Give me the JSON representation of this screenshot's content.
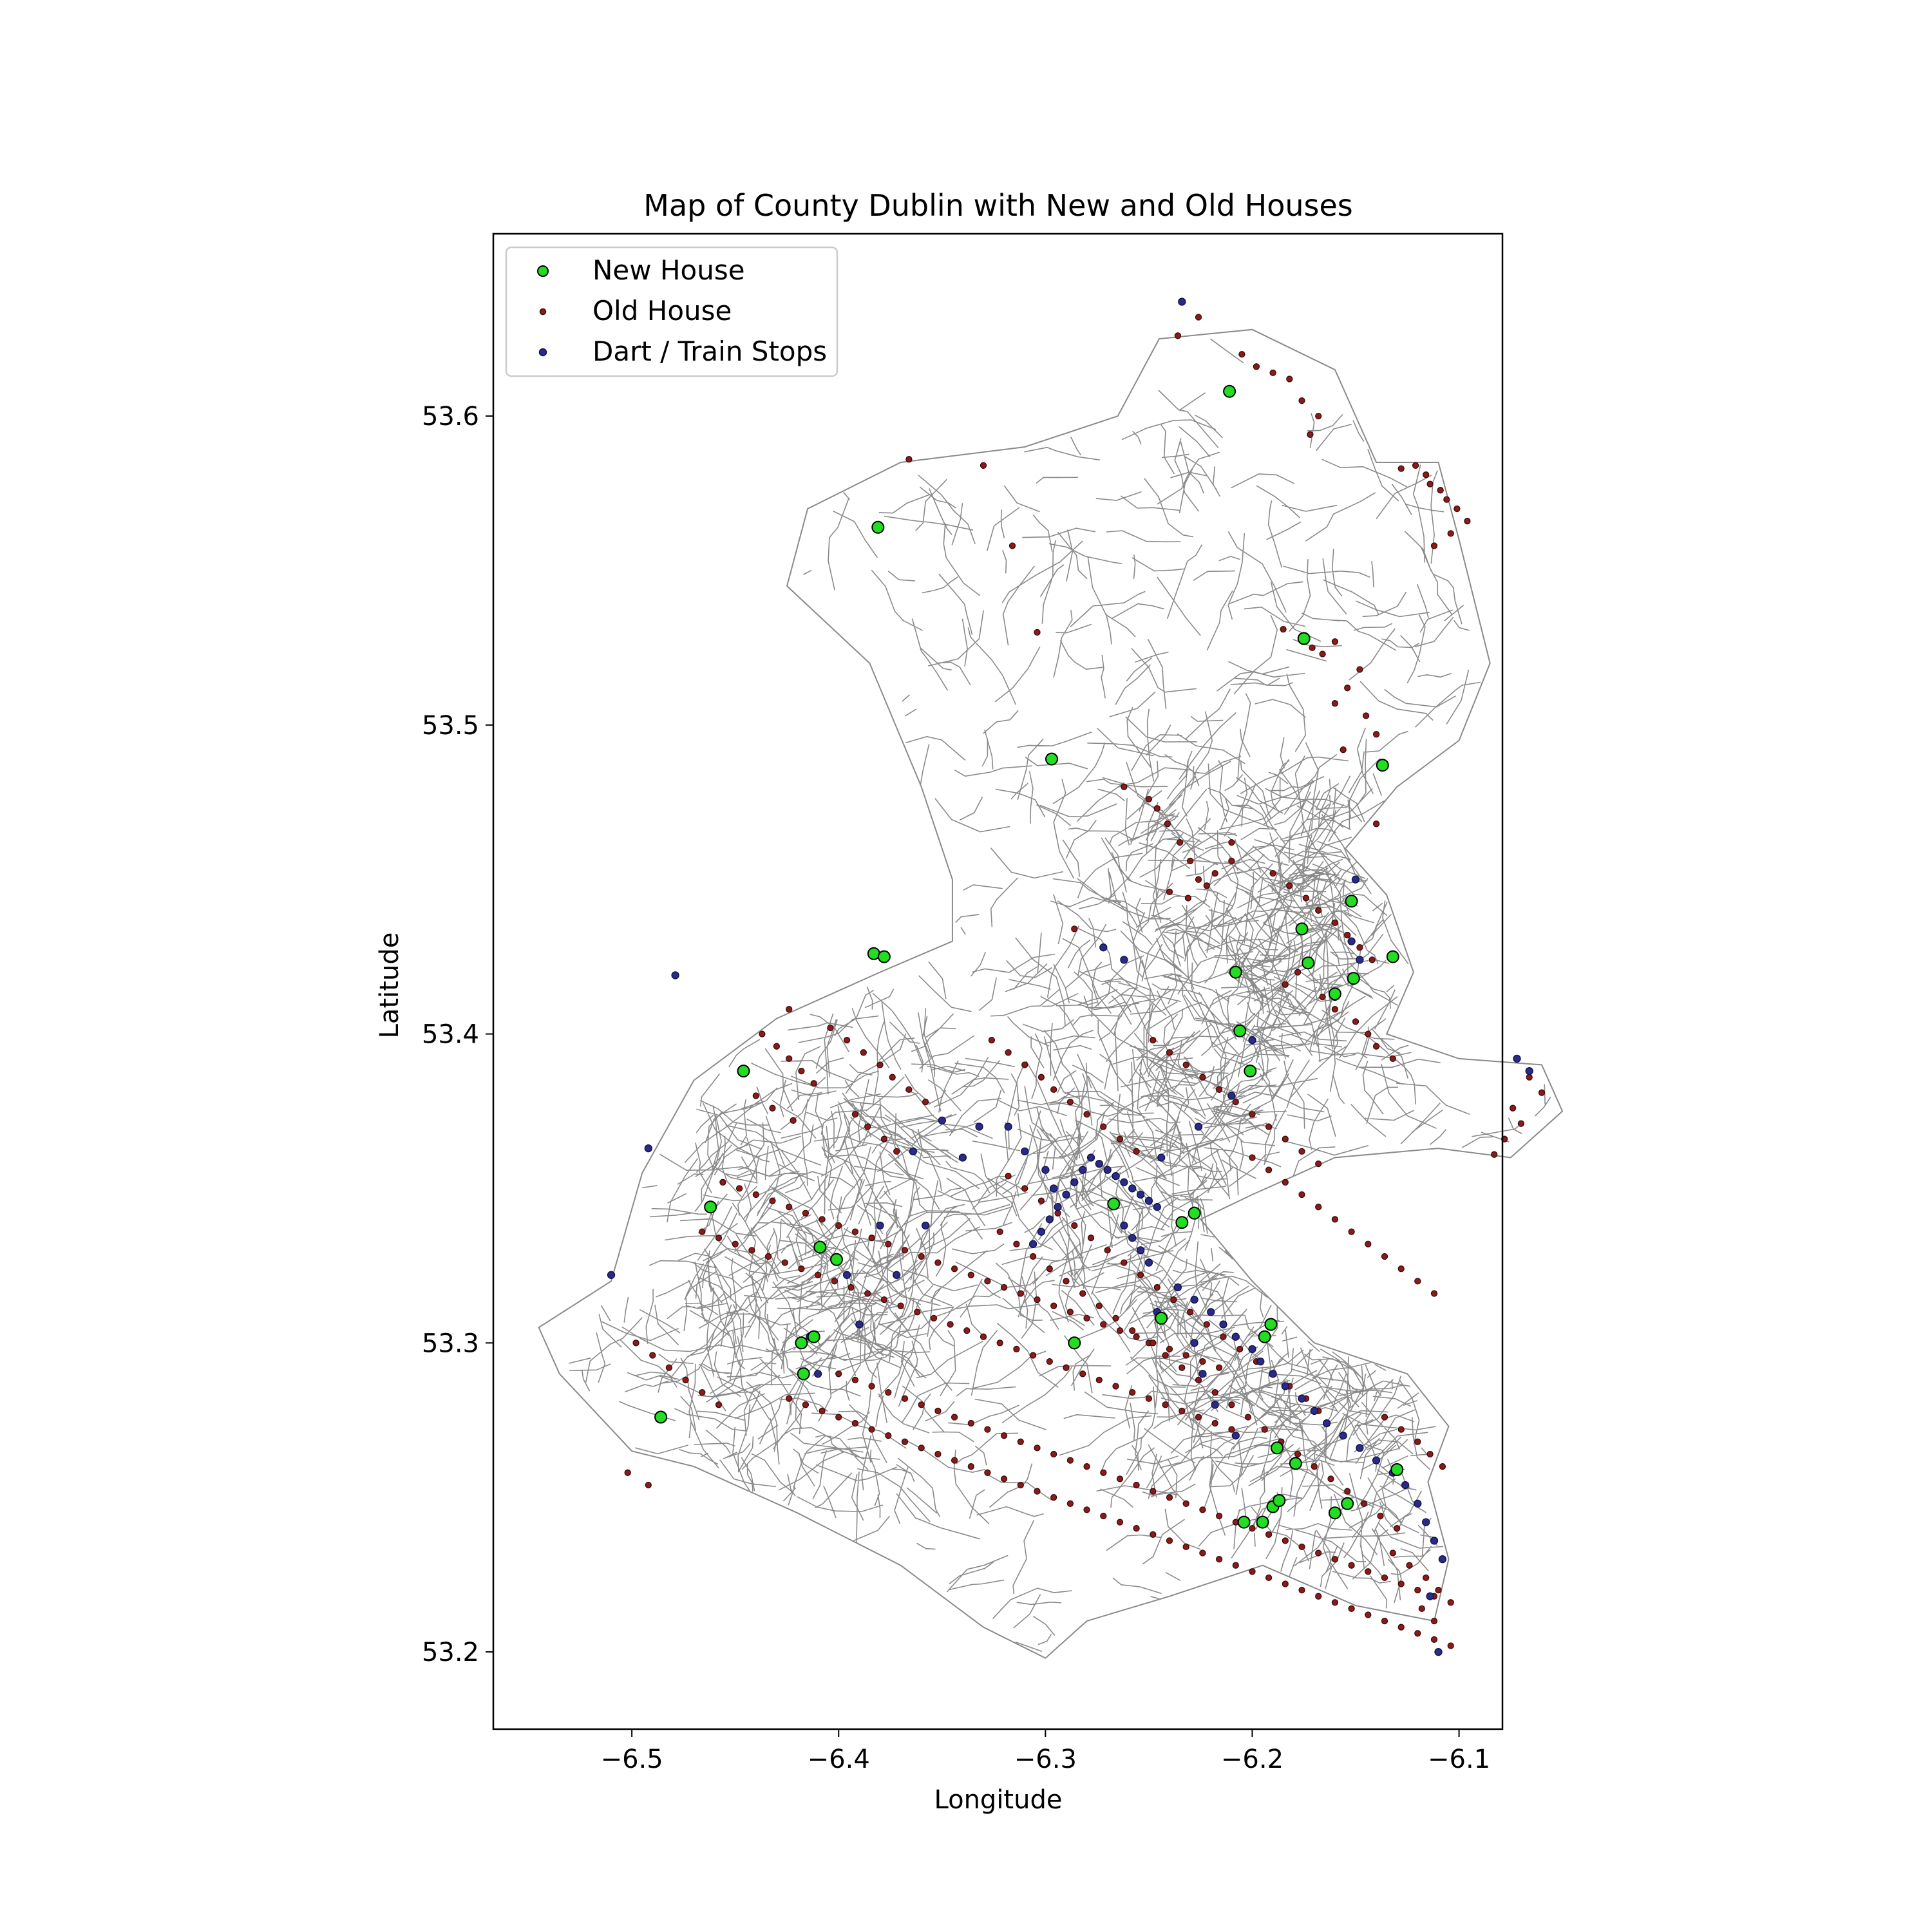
{
  "chart_data": {
    "type": "scatter",
    "title": "Map of County Dublin with New and Old Houses",
    "xlabel": "Longitude",
    "ylabel": "Latitude",
    "xlim": [
      -6.567,
      -6.079
    ],
    "ylim": [
      53.175,
      53.659
    ],
    "xticks": [
      -6.5,
      -6.4,
      -6.3,
      -6.2,
      -6.1
    ],
    "xtick_labels": [
      "−6.5",
      "−6.4",
      "−6.3",
      "−6.2",
      "−6.1"
    ],
    "yticks": [
      53.2,
      53.3,
      53.4,
      53.5,
      53.6
    ],
    "ytick_labels": [
      "53.2",
      "53.3",
      "53.4",
      "53.5",
      "53.6"
    ],
    "grid": false,
    "legend_position": "upper-left",
    "background_layer": "road network of County Dublin (grey lines)",
    "series": [
      {
        "name": "New House",
        "color": "#22dd22",
        "edge_color": "#000000",
        "marker": "circle",
        "x": [
          -6.211,
          -6.381,
          -6.175,
          -6.297,
          -6.137,
          -6.383,
          -6.378,
          -6.152,
          -6.176,
          -6.173,
          -6.132,
          -6.151,
          -6.16,
          -6.208,
          -6.206,
          -6.201,
          -6.446,
          -6.462,
          -6.409,
          -6.401,
          -6.267,
          -6.228,
          -6.234,
          -6.244,
          -6.286,
          -6.194,
          -6.191,
          -6.418,
          -6.412,
          -6.417,
          -6.486,
          -6.188,
          -6.179,
          -6.13,
          -6.19,
          -6.187,
          -6.204,
          -6.195,
          -6.16,
          -6.154
        ],
        "y": [
          53.608,
          53.564,
          53.528,
          53.489,
          53.487,
          53.426,
          53.425,
          53.443,
          53.434,
          53.423,
          53.425,
          53.418,
          53.413,
          53.42,
          53.401,
          53.388,
          53.388,
          53.344,
          53.331,
          53.327,
          53.345,
          53.342,
          53.339,
          53.308,
          53.3,
          53.302,
          53.306,
          53.3,
          53.302,
          53.29,
          53.276,
          53.266,
          53.261,
          53.259,
          53.247,
          53.249,
          53.242,
          53.242,
          53.245,
          53.248
        ]
      },
      {
        "name": "Old House",
        "color": "#8b1a1a",
        "edge_color": "#3a0a0a",
        "marker": "circle",
        "x": [
          -6.205,
          -6.198,
          -6.19,
          -6.182,
          -6.176,
          -6.168,
          -6.172,
          -6.128,
          -6.121,
          -6.116,
          -6.114,
          -6.109,
          -6.106,
          -6.101,
          -6.096,
          -6.104,
          -6.112,
          -6.185,
          -6.171,
          -6.166,
          -6.16,
          -6.148,
          -6.154,
          -6.16,
          -6.145,
          -6.14,
          -6.246,
          -6.241,
          -6.235,
          -6.23,
          -6.226,
          -6.24,
          -6.231,
          -6.222,
          -6.218,
          -6.21,
          -6.19,
          -6.182,
          -6.174,
          -6.168,
          -6.16,
          -6.154,
          -6.148,
          -6.142,
          -6.178,
          -6.184,
          -6.166,
          -6.16,
          -6.15,
          -6.144,
          -6.14,
          -6.132,
          -6.437,
          -6.43,
          -6.424,
          -6.418,
          -6.412,
          -6.44,
          -6.432,
          -6.422,
          -6.404,
          -6.396,
          -6.388,
          -6.38,
          -6.374,
          -6.366,
          -6.358,
          -6.392,
          -6.386,
          -6.378,
          -6.372,
          -6.326,
          -6.318,
          -6.31,
          -6.302,
          -6.296,
          -6.288,
          -6.28,
          -6.272,
          -6.264,
          -6.256,
          -6.248,
          -6.24,
          -6.232,
          -6.224,
          -6.216,
          -6.208,
          -6.2,
          -6.192,
          -6.184,
          -6.176,
          -6.168,
          -6.318,
          -6.31,
          -6.302,
          -6.294,
          -6.286,
          -6.278,
          -6.27,
          -6.262,
          -6.254,
          -6.246,
          -6.238,
          -6.23,
          -6.222,
          -6.214,
          -6.206,
          -6.198,
          -6.19,
          -6.182,
          -6.174,
          -6.168,
          -6.322,
          -6.314,
          -6.306,
          -6.298,
          -6.29,
          -6.282,
          -6.274,
          -6.266,
          -6.258,
          -6.25,
          -6.242,
          -6.234,
          -6.226,
          -6.218,
          -6.21,
          -6.202,
          -6.194,
          -6.186,
          -6.178,
          -6.17,
          -6.162,
          -6.154,
          -6.146,
          -6.138,
          -6.13,
          -6.066,
          -6.06,
          -6.074,
          -6.07,
          -6.078,
          -6.083,
          -6.456,
          -6.448,
          -6.44,
          -6.432,
          -6.424,
          -6.416,
          -6.408,
          -6.4,
          -6.392,
          -6.384,
          -6.376,
          -6.368,
          -6.36,
          -6.352,
          -6.344,
          -6.336,
          -6.328,
          -6.32,
          -6.312,
          -6.304,
          -6.296,
          -6.288,
          -6.28,
          -6.272,
          -6.264,
          -6.256,
          -6.248,
          -6.24,
          -6.232,
          -6.224,
          -6.216,
          -6.466,
          -6.458,
          -6.45,
          -6.442,
          -6.434,
          -6.426,
          -6.418,
          -6.41,
          -6.402,
          -6.394,
          -6.386,
          -6.378,
          -6.37,
          -6.362,
          -6.354,
          -6.346,
          -6.338,
          -6.33,
          -6.322,
          -6.314,
          -6.306,
          -6.298,
          -6.29,
          -6.282,
          -6.274,
          -6.266,
          -6.258,
          -6.25,
          -6.242,
          -6.234,
          -6.226,
          -6.218,
          -6.21,
          -6.4,
          -6.392,
          -6.384,
          -6.376,
          -6.368,
          -6.36,
          -6.352,
          -6.344,
          -6.336,
          -6.328,
          -6.32,
          -6.312,
          -6.304,
          -6.296,
          -6.288,
          -6.28,
          -6.272,
          -6.264,
          -6.256,
          -6.248,
          -6.24,
          -6.232,
          -6.224,
          -6.216,
          -6.208,
          -6.2,
          -6.192,
          -6.184,
          -6.176,
          -6.168,
          -6.16,
          -6.152,
          -6.144,
          -6.136,
          -6.128,
          -6.12,
          -6.112,
          -6.104,
          -6.424,
          -6.416,
          -6.408,
          -6.4,
          -6.392,
          -6.384,
          -6.376,
          -6.368,
          -6.36,
          -6.352,
          -6.344,
          -6.336,
          -6.328,
          -6.32,
          -6.312,
          -6.304,
          -6.296,
          -6.288,
          -6.28,
          -6.272,
          -6.264,
          -6.256,
          -6.248,
          -6.24,
          -6.232,
          -6.224,
          -6.216,
          -6.208,
          -6.2,
          -6.192,
          -6.184,
          -6.176,
          -6.168,
          -6.16,
          -6.152,
          -6.144,
          -6.136,
          -6.128,
          -6.12,
          -6.112,
          -6.104,
          -6.498,
          -6.49,
          -6.482,
          -6.474,
          -6.466,
          -6.458,
          -6.2,
          -6.192,
          -6.184,
          -6.176,
          -6.168,
          -6.16,
          -6.152,
          -6.144,
          -6.136,
          -6.128,
          -6.12,
          -6.112,
          -6.136,
          -6.128,
          -6.12,
          -6.114,
          -6.108,
          -6.132,
          -6.124,
          -6.116,
          -6.11,
          -6.118,
          -6.112,
          -6.236,
          -6.226,
          -6.33,
          -6.316,
          -6.262,
          -6.25,
          -6.21,
          -6.156,
          -6.14,
          -6.366,
          -6.304,
          -6.502,
          -6.492,
          -6.424,
          -6.286
        ],
        "y": [
          53.62,
          53.616,
          53.614,
          53.612,
          53.605,
          53.6,
          53.594,
          53.583,
          53.584,
          53.581,
          53.578,
          53.576,
          53.573,
          53.57,
          53.566,
          53.562,
          53.558,
          53.531,
          53.525,
          53.523,
          53.527,
          53.518,
          53.512,
          53.507,
          53.503,
          53.497,
          53.473,
          53.468,
          53.462,
          53.456,
          53.45,
          53.446,
          53.444,
          53.448,
          53.452,
          53.456,
          53.452,
          53.448,
          53.444,
          53.44,
          53.436,
          53.432,
          53.428,
          53.424,
          53.42,
          53.416,
          53.412,
          53.408,
          53.404,
          53.4,
          53.396,
          53.392,
          53.4,
          53.396,
          53.392,
          53.388,
          53.384,
          53.38,
          53.376,
          53.372,
          53.402,
          53.398,
          53.394,
          53.39,
          53.386,
          53.382,
          53.378,
          53.374,
          53.37,
          53.366,
          53.362,
          53.398,
          53.394,
          53.39,
          53.386,
          53.382,
          53.378,
          53.374,
          53.37,
          53.366,
          53.362,
          53.398,
          53.394,
          53.39,
          53.386,
          53.382,
          53.378,
          53.374,
          53.37,
          53.366,
          53.362,
          53.358,
          53.354,
          53.35,
          53.346,
          53.342,
          53.338,
          53.334,
          53.33,
          53.326,
          53.322,
          53.318,
          53.314,
          53.31,
          53.306,
          53.302,
          53.298,
          53.294,
          53.29,
          53.286,
          53.282,
          53.278,
          53.336,
          53.332,
          53.328,
          53.324,
          53.32,
          53.316,
          53.312,
          53.308,
          53.304,
          53.3,
          53.296,
          53.292,
          53.288,
          53.284,
          53.28,
          53.276,
          53.272,
          53.268,
          53.264,
          53.26,
          53.256,
          53.252,
          53.248,
          53.244,
          53.24,
          53.386,
          53.381,
          53.376,
          53.371,
          53.366,
          53.361,
          53.352,
          53.35,
          53.348,
          53.346,
          53.344,
          53.342,
          53.34,
          53.338,
          53.336,
          53.334,
          53.332,
          53.33,
          53.328,
          53.326,
          53.324,
          53.322,
          53.32,
          53.318,
          53.316,
          53.314,
          53.312,
          53.31,
          53.308,
          53.306,
          53.304,
          53.302,
          53.3,
          53.298,
          53.296,
          53.294,
          53.292,
          53.336,
          53.334,
          53.332,
          53.33,
          53.328,
          53.326,
          53.324,
          53.322,
          53.32,
          53.318,
          53.316,
          53.314,
          53.312,
          53.31,
          53.308,
          53.306,
          53.304,
          53.302,
          53.3,
          53.298,
          53.296,
          53.294,
          53.292,
          53.29,
          53.288,
          53.286,
          53.284,
          53.282,
          53.28,
          53.278,
          53.276,
          53.274,
          53.272,
          53.29,
          53.288,
          53.286,
          53.284,
          53.282,
          53.28,
          53.278,
          53.276,
          53.274,
          53.272,
          53.27,
          53.268,
          53.266,
          53.264,
          53.262,
          53.26,
          53.258,
          53.256,
          53.254,
          53.252,
          53.25,
          53.248,
          53.246,
          53.244,
          53.242,
          53.24,
          53.238,
          53.236,
          53.234,
          53.232,
          53.23,
          53.228,
          53.226,
          53.224,
          53.222,
          53.22,
          53.218,
          53.216,
          53.282,
          53.28,
          53.278,
          53.276,
          53.274,
          53.272,
          53.27,
          53.268,
          53.266,
          53.264,
          53.262,
          53.26,
          53.258,
          53.256,
          53.254,
          53.252,
          53.25,
          53.248,
          53.246,
          53.244,
          53.242,
          53.24,
          53.238,
          53.236,
          53.234,
          53.232,
          53.23,
          53.228,
          53.226,
          53.224,
          53.222,
          53.22,
          53.218,
          53.216,
          53.214,
          53.212,
          53.21,
          53.208,
          53.206,
          53.204,
          53.202,
          53.3,
          53.296,
          53.292,
          53.288,
          53.284,
          53.28,
          53.36,
          53.356,
          53.352,
          53.348,
          53.344,
          53.34,
          53.336,
          53.332,
          53.328,
          53.324,
          53.32,
          53.316,
          53.276,
          53.272,
          53.268,
          53.264,
          53.26,
          53.232,
          53.228,
          53.224,
          53.22,
          53.214,
          53.21,
          53.626,
          53.632,
          53.584,
          53.558,
          53.48,
          53.476,
          53.462,
          53.492,
          53.468,
          53.586,
          53.53,
          53.258,
          53.254,
          53.408,
          53.434
        ]
      },
      {
        "name": "Dart / Train Stops",
        "color": "#2a2a8a",
        "edge_color": "#101040",
        "marker": "circle",
        "x": [
          -6.234,
          -6.479,
          -6.492,
          -6.51,
          -6.262,
          -6.258,
          -6.254,
          -6.25,
          -6.246,
          -6.266,
          -6.27,
          -6.274,
          -6.278,
          -6.282,
          -6.286,
          -6.29,
          -6.294,
          -6.298,
          -6.302,
          -6.306,
          -6.262,
          -6.258,
          -6.254,
          -6.25,
          -6.236,
          -6.228,
          -6.22,
          -6.214,
          -6.208,
          -6.2,
          -6.196,
          -6.19,
          -6.184,
          -6.176,
          -6.17,
          -6.164,
          -6.156,
          -6.148,
          -6.14,
          -6.132,
          -6.126,
          -6.12,
          -6.116,
          -6.112,
          -6.108,
          -6.114,
          -6.11,
          -6.152,
          -6.15,
          -6.16,
          -6.2,
          -6.21,
          -6.226,
          -6.244,
          -6.262,
          -6.272,
          -6.34,
          -6.358,
          -6.372,
          -6.39,
          -6.41,
          -6.414,
          -6.396,
          -6.38,
          -6.364,
          -6.35,
          -6.332,
          -6.318,
          -6.31,
          -6.3,
          -6.296,
          -6.15,
          -6.148,
          -6.066,
          -6.072,
          -6.246,
          -6.228,
          -6.224,
          -6.218,
          -6.208
        ],
        "y": [
          53.637,
          53.419,
          53.363,
          53.322,
          53.352,
          53.35,
          53.348,
          53.346,
          53.344,
          53.354,
          53.356,
          53.358,
          53.36,
          53.356,
          53.352,
          53.348,
          53.344,
          53.34,
          53.336,
          53.332,
          53.338,
          53.334,
          53.33,
          53.326,
          53.318,
          53.314,
          53.31,
          53.306,
          53.302,
          53.298,
          53.294,
          53.29,
          53.286,
          53.282,
          53.278,
          53.274,
          53.27,
          53.266,
          53.262,
          53.258,
          53.254,
          53.248,
          53.242,
          53.236,
          53.23,
          53.218,
          53.2,
          53.43,
          53.45,
          53.412,
          53.398,
          53.38,
          53.37,
          53.36,
          53.424,
          53.428,
          53.36,
          53.338,
          53.322,
          53.306,
          53.29,
          53.302,
          53.322,
          53.338,
          53.362,
          53.372,
          53.37,
          53.37,
          53.362,
          53.356,
          53.35,
          53.418,
          53.424,
          53.388,
          53.392,
          53.31,
          53.3,
          53.29,
          53.28,
          53.27
        ]
      }
    ]
  },
  "legend": {
    "items": [
      {
        "label": "New House",
        "color": "#22dd22"
      },
      {
        "label": "Old House",
        "color": "#8b1a1a"
      },
      {
        "label": "Dart / Train Stops",
        "color": "#2a2a8a"
      }
    ]
  }
}
